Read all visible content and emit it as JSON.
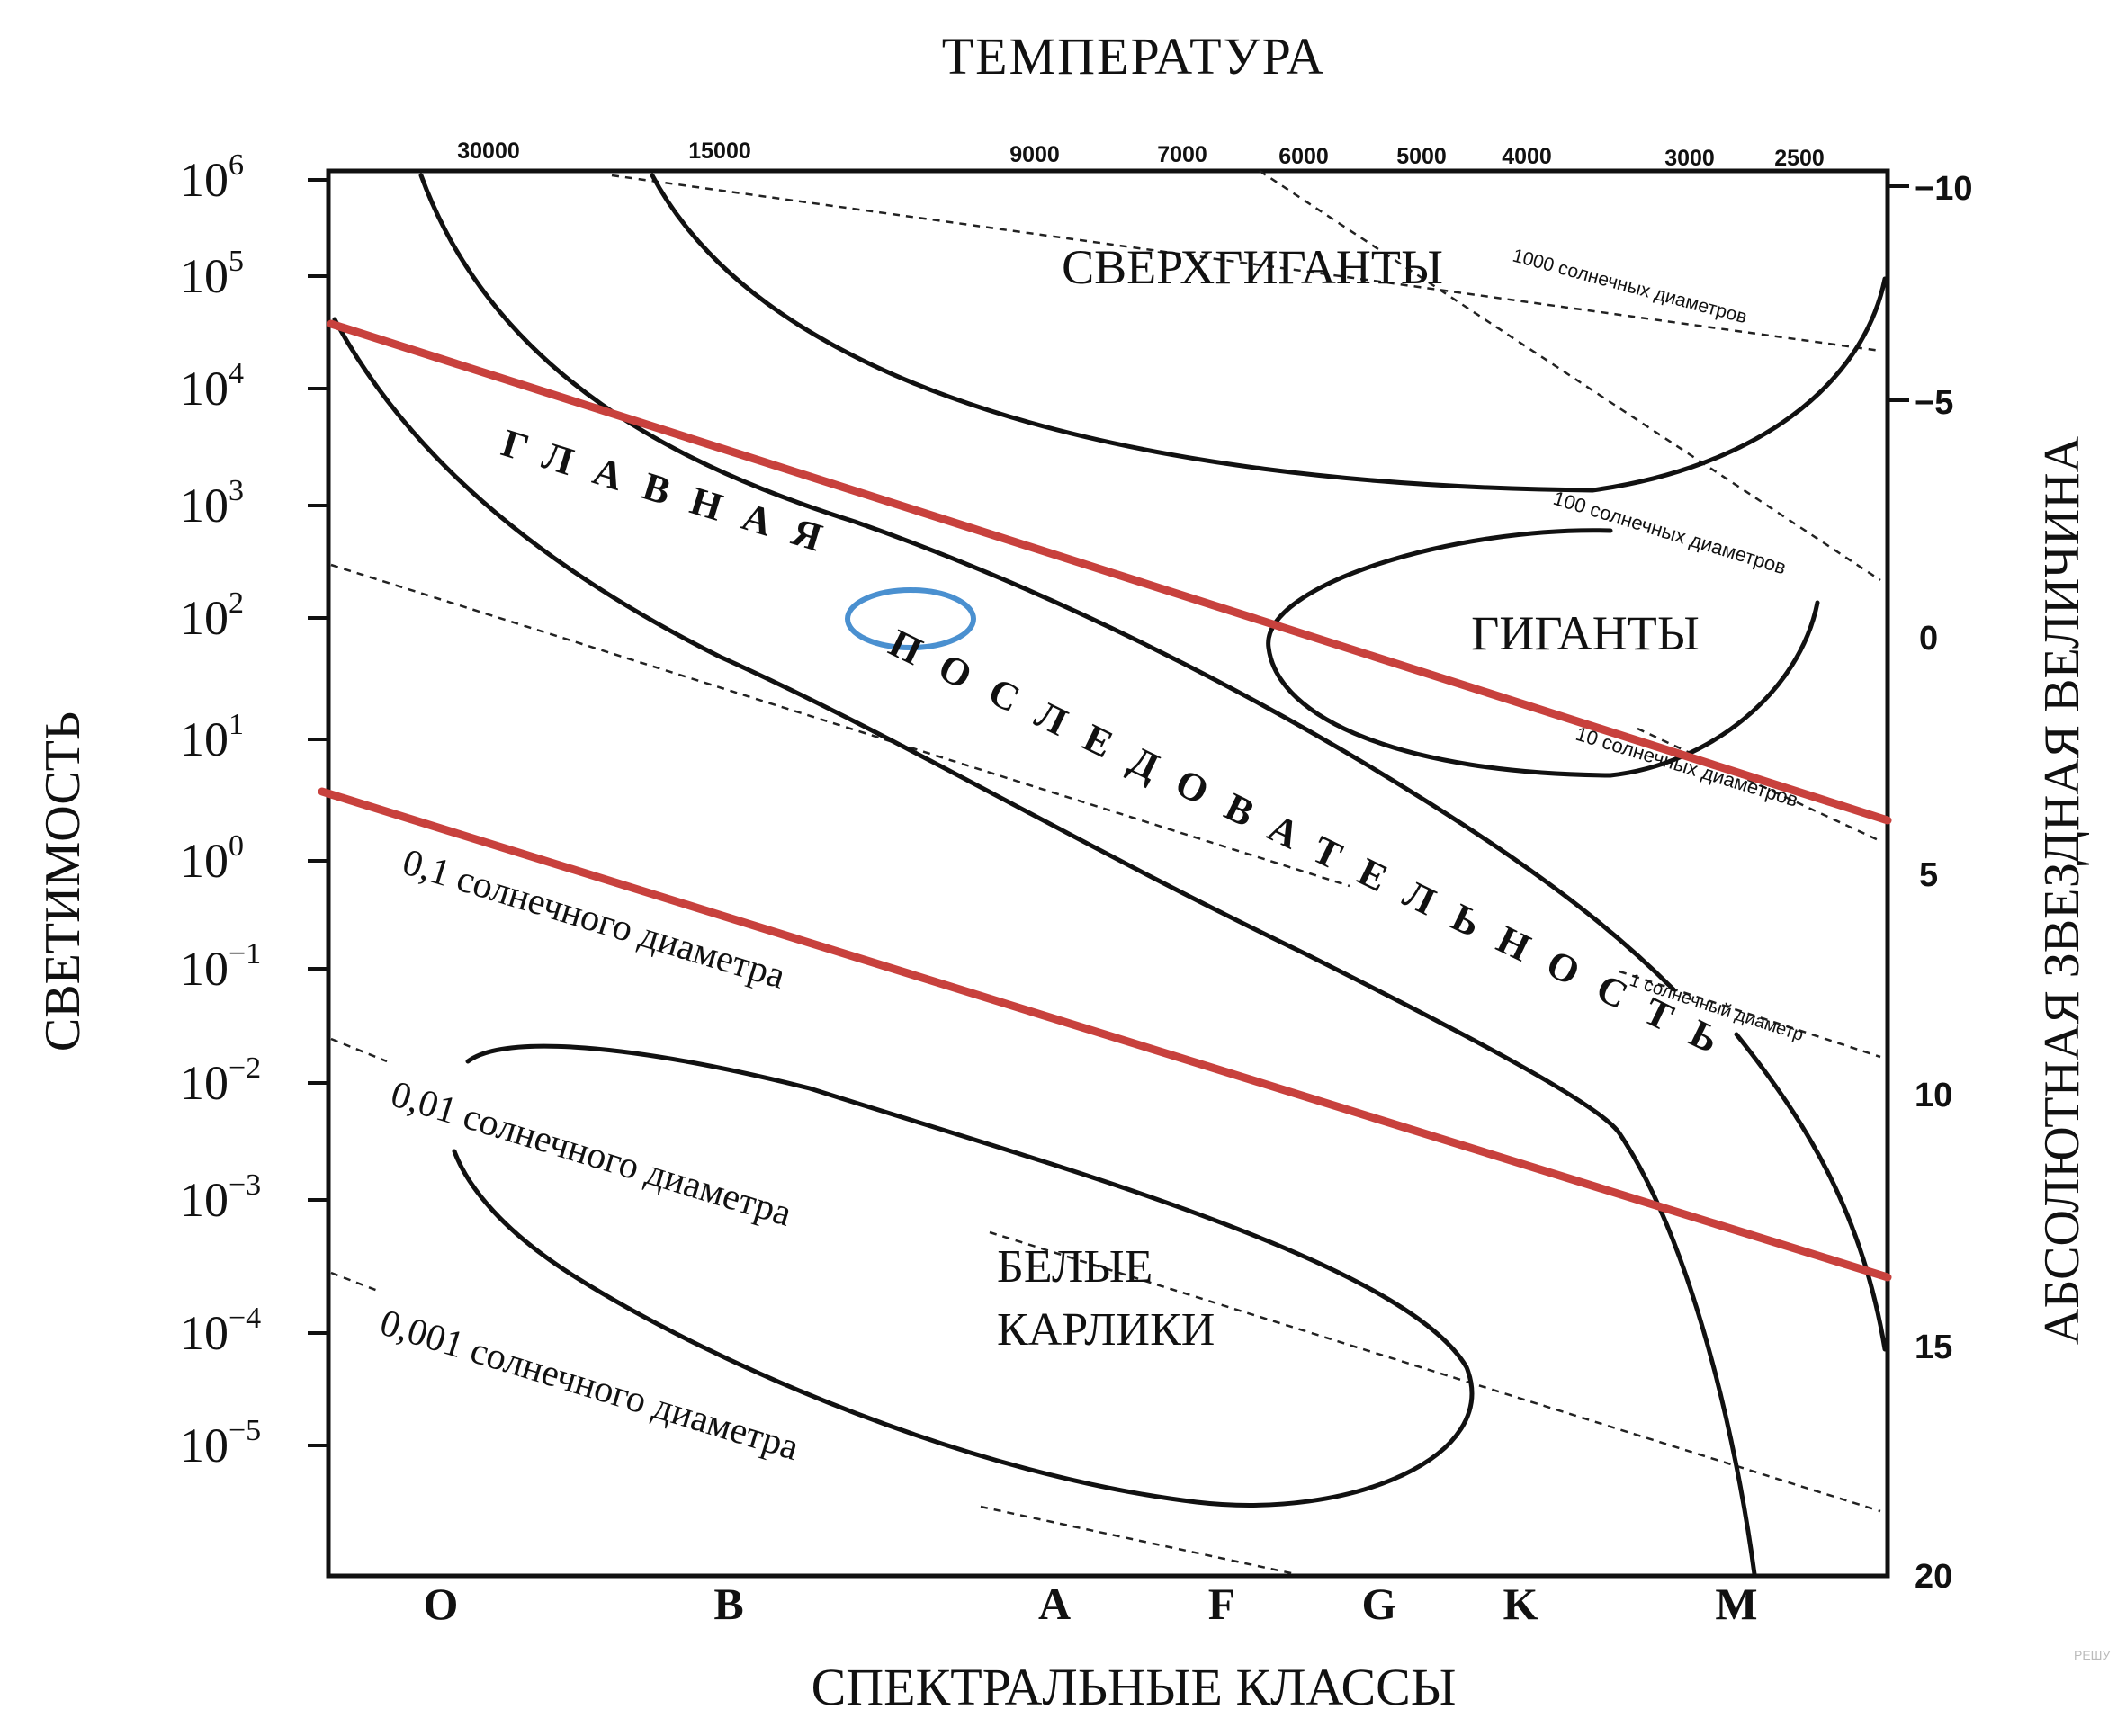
{
  "title": "ТЕМПЕРАТУРА",
  "x_axis_label": "СПЕКТРАЛЬНЫЕ КЛАССЫ",
  "y_left_label": "СВЕТИМОСТЬ",
  "y_right_label": "АБСОЛЮТНАЯ ЗВЕЗДНАЯ ВЕЛИЧИНА",
  "temperature_ticks": [
    "30000",
    "15000",
    "9000",
    "7000",
    "6000",
    "5000",
    "4000",
    "3000",
    "2500"
  ],
  "spectral_classes": [
    "O",
    "B",
    "A",
    "F",
    "G",
    "K",
    "M"
  ],
  "luminosity_ticks": [
    {
      "base": "10",
      "exp": "6"
    },
    {
      "base": "10",
      "exp": "5"
    },
    {
      "base": "10",
      "exp": "4"
    },
    {
      "base": "10",
      "exp": "3"
    },
    {
      "base": "10",
      "exp": "2"
    },
    {
      "base": "10",
      "exp": "1"
    },
    {
      "base": "10",
      "exp": "0"
    },
    {
      "base": "10",
      "exp": "−1"
    },
    {
      "base": "10",
      "exp": "−2"
    },
    {
      "base": "10",
      "exp": "−3"
    },
    {
      "base": "10",
      "exp": "−4"
    },
    {
      "base": "10",
      "exp": "−5"
    }
  ],
  "magnitude_ticks": [
    "−10",
    "−5",
    "0",
    "5",
    "10",
    "15",
    "20"
  ],
  "regions": {
    "supergiants": "СВЕРХГИГАНТЫ",
    "giants": "ГИГАНТЫ",
    "main_sequence_1": "ГЛАВНАЯ",
    "main_sequence_2": "ПОСЛЕДОВАТЕЛЬНОСТЬ",
    "white_dwarfs_1": "БЕЛЫЕ",
    "white_dwarfs_2": "КАРЛИКИ"
  },
  "diameter_labels": {
    "d1000": "1000 солнечных диаметров",
    "d100": "100 солнечных диаметров",
    "d10": "10 солнечных диаметров",
    "d1": "1 солнечный диаметр",
    "d01": "0,1 солнечного диаметра",
    "d001": "0,01 солнечного диаметра",
    "d0001": "0,001 солнечного диаметра"
  },
  "watermark": "РЕШУ",
  "colors": {
    "red_line": "#c8413d",
    "blue_marker": "#4a90d0",
    "ink": "#111111"
  }
}
